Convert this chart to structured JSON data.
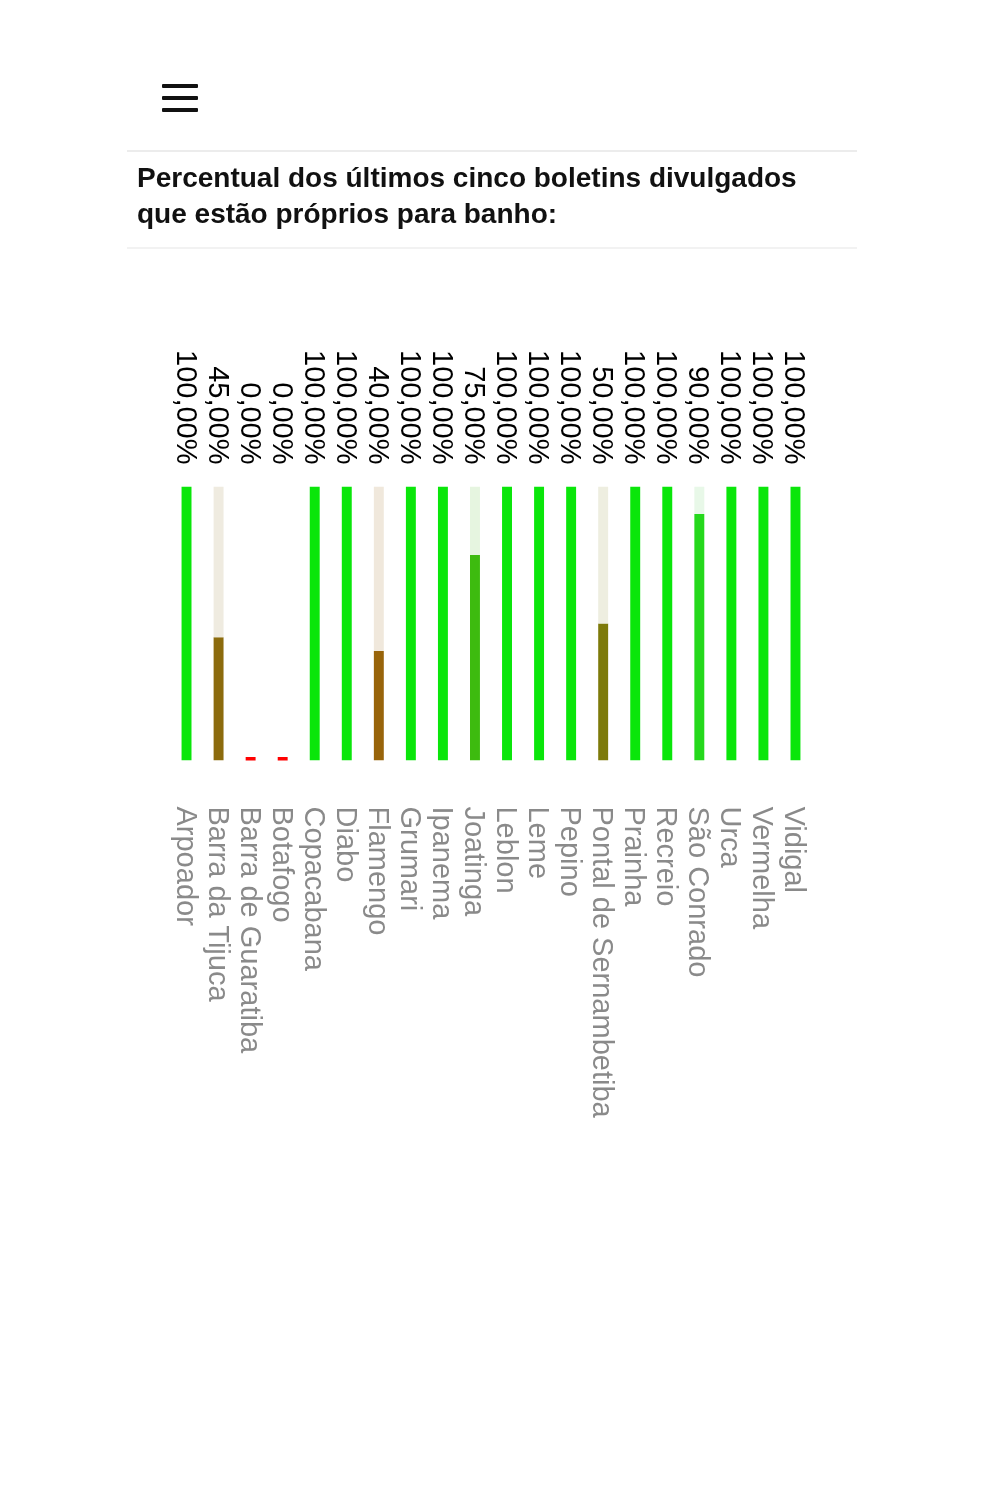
{
  "chart_data": {
    "type": "bar",
    "title": "Percentual dos últimos cinco boletins divulgados que estão próprios para banho:",
    "categories": [
      "Arpoador",
      "Barra da Tijuca",
      "Barra de Guaratiba",
      "Botafogo",
      "Copacabana",
      "Diabo",
      "Flamengo",
      "Grumari",
      "Ipanema",
      "Joatinga",
      "Leblon",
      "Leme",
      "Pepino",
      "Pontal de Sernambetiba",
      "Prainha",
      "Recreio",
      "São Conrado",
      "Urca",
      "Vermelha",
      "Vidigal"
    ],
    "stacked": true,
    "ylim": [
      0,
      100
    ],
    "grid": false,
    "tick_labels": "x",
    "series": [
      {
        "values": [
          100,
          45,
          0,
          0,
          100,
          100,
          40,
          100,
          100,
          75,
          100,
          100,
          100,
          50,
          100,
          100,
          90,
          100,
          100,
          100
        ],
        "colors": [
          "#0ae60a",
          "#8c6b0d",
          "#ff0000",
          "#ff0000",
          "#0ae60a",
          "#0ae60a",
          "#98640a",
          "#0ae60a",
          "#0ae60a",
          "#3dbb0f",
          "#0ae60a",
          "#0ae60a",
          "#0ae60a",
          "#7d7a0a",
          "#0ae60a",
          "#0ae60a",
          "#25d81c",
          "#0ae60a",
          "#0ae60a",
          "#0ae60a"
        ],
        "value_labels": [
          "100,00%",
          "45,00%",
          "0,00%",
          "0,00%",
          "100,00%",
          "100,00%",
          "40,00%",
          "100,00%",
          "100,00%",
          "75,00%",
          "100,00%",
          "100,00%",
          "100,00%",
          "50,00%",
          "100,00%",
          "100,00%",
          "90,00%",
          "100,00%",
          "100,00%",
          "100,00%"
        ]
      },
      {
        "values": [
          null,
          55,
          null,
          null,
          null,
          null,
          60,
          null,
          null,
          25,
          null,
          null,
          null,
          50,
          null,
          null,
          10,
          null,
          null,
          null
        ],
        "colors": [
          "#e6f8e6",
          "#efebe0",
          "#ffffff",
          "#ffffff",
          "#e6f8e6",
          "#e6f8e6",
          "#f0e8dc",
          "#e6f8e6",
          "#e6f8e6",
          "#e6f5e0",
          "#e6f8e6",
          "#e6f8e6",
          "#e6f8e6",
          "#eeeee0",
          "#e6f8e6",
          "#e6f8e6",
          "#e8f8e8",
          "#e6f8e6",
          "#e6f8e6",
          "#e6f8e6"
        ]
      }
    ]
  }
}
